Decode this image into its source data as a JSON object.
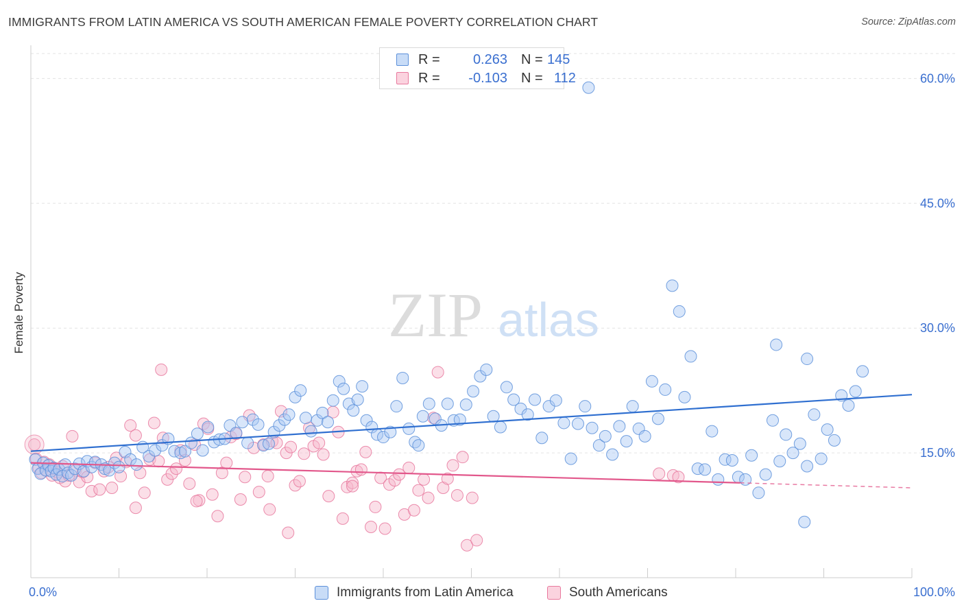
{
  "title": "IMMIGRANTS FROM LATIN AMERICA VS SOUTH AMERICAN FEMALE POVERTY CORRELATION CHART",
  "source": "Source: ZipAtlas.com",
  "watermark": {
    "zip": "ZIP",
    "atlas": "atlas"
  },
  "legend": {
    "rows": [
      {
        "r_label": "R =",
        "r_value": "0.263",
        "n_label": "N =",
        "n_value": "145",
        "color": "#a9c8f4"
      },
      {
        "r_label": "R =",
        "r_value": "-0.103",
        "n_label": "N =",
        "n_value": "112",
        "color": "#f6b8cb"
      }
    ]
  },
  "bottom_legend": [
    {
      "label": "Immigrants from Latin America",
      "color": "#a9c8f4"
    },
    {
      "label": "South Americans",
      "color": "#f6b8cb"
    }
  ],
  "chart_data": {
    "type": "scatter",
    "title": "IMMIGRANTS FROM LATIN AMERICA VS SOUTH AMERICAN FEMALE POVERTY CORRELATION CHART",
    "xlabel": "",
    "ylabel": "Female Poverty",
    "xlim": [
      0,
      100
    ],
    "ylim": [
      0,
      63
    ],
    "x_tick_labels": [
      "0.0%",
      "100.0%"
    ],
    "y_ticks": [
      15,
      30,
      45,
      60
    ],
    "y_tick_labels": [
      "15.0%",
      "30.0%",
      "45.0%",
      "60.0%"
    ],
    "grid": true,
    "legend_position": "top-center",
    "series": [
      {
        "name": "Immigrants from Latin America",
        "color": "#5b8fd9",
        "fill": "#a9c8f4",
        "trend": {
          "x": [
            0,
            100
          ],
          "y": [
            15.2,
            22.0
          ],
          "color": "#2f6fd0"
        },
        "points": [
          [
            0.5,
            14.2
          ],
          [
            0.8,
            13.1
          ],
          [
            1.1,
            12.5
          ],
          [
            1.4,
            13.8
          ],
          [
            1.7,
            12.9
          ],
          [
            2.0,
            13.5
          ],
          [
            2.3,
            12.8
          ],
          [
            2.6,
            13.2
          ],
          [
            2.9,
            12.4
          ],
          [
            3.2,
            13.0
          ],
          [
            3.6,
            12.2
          ],
          [
            3.9,
            13.6
          ],
          [
            4.2,
            12.6
          ],
          [
            4.6,
            12.3
          ],
          [
            5.0,
            13.1
          ],
          [
            5.5,
            13.7
          ],
          [
            6.0,
            12.8
          ],
          [
            6.4,
            14.0
          ],
          [
            6.9,
            13.3
          ],
          [
            7.3,
            13.9
          ],
          [
            8.0,
            13.6
          ],
          [
            8.4,
            13.1
          ],
          [
            8.9,
            12.9
          ],
          [
            9.5,
            13.8
          ],
          [
            10.0,
            13.3
          ],
          [
            10.7,
            15.1
          ],
          [
            11.3,
            14.2
          ],
          [
            12.0,
            13.6
          ],
          [
            12.7,
            15.7
          ],
          [
            13.4,
            14.6
          ],
          [
            14.1,
            15.3
          ],
          [
            14.9,
            15.9
          ],
          [
            15.6,
            16.7
          ],
          [
            16.3,
            15.2
          ],
          [
            17.0,
            15.0
          ],
          [
            17.5,
            15.2
          ],
          [
            18.2,
            16.2
          ],
          [
            18.9,
            17.3
          ],
          [
            19.5,
            15.3
          ],
          [
            20.1,
            18.1
          ],
          [
            20.8,
            16.3
          ],
          [
            21.4,
            16.6
          ],
          [
            22.0,
            16.7
          ],
          [
            22.6,
            18.3
          ],
          [
            23.3,
            17.4
          ],
          [
            24.0,
            18.7
          ],
          [
            24.6,
            16.2
          ],
          [
            25.2,
            19.0
          ],
          [
            25.8,
            18.4
          ],
          [
            26.4,
            15.9
          ],
          [
            27.0,
            16.1
          ],
          [
            27.6,
            17.5
          ],
          [
            28.2,
            18.3
          ],
          [
            28.8,
            19.0
          ],
          [
            29.3,
            19.6
          ],
          [
            30.0,
            21.7
          ],
          [
            30.6,
            22.5
          ],
          [
            31.2,
            19.2
          ],
          [
            31.8,
            17.6
          ],
          [
            32.5,
            18.9
          ],
          [
            33.1,
            19.8
          ],
          [
            33.7,
            18.7
          ],
          [
            34.3,
            21.3
          ],
          [
            35.0,
            23.6
          ],
          [
            35.5,
            22.7
          ],
          [
            36.1,
            20.9
          ],
          [
            36.6,
            20.1
          ],
          [
            37.1,
            21.4
          ],
          [
            37.6,
            23.0
          ],
          [
            38.1,
            18.9
          ],
          [
            38.7,
            18.1
          ],
          [
            39.3,
            17.2
          ],
          [
            40.0,
            16.9
          ],
          [
            40.8,
            17.5
          ],
          [
            41.5,
            20.6
          ],
          [
            42.2,
            24.0
          ],
          [
            42.9,
            17.9
          ],
          [
            43.6,
            16.3
          ],
          [
            44.0,
            15.9
          ],
          [
            44.5,
            19.4
          ],
          [
            45.2,
            20.9
          ],
          [
            45.9,
            19.1
          ],
          [
            46.6,
            18.3
          ],
          [
            47.3,
            20.9
          ],
          [
            48.0,
            18.9
          ],
          [
            48.7,
            19.0
          ],
          [
            49.4,
            20.8
          ],
          [
            50.2,
            22.4
          ],
          [
            51.0,
            24.2
          ],
          [
            51.7,
            25.0
          ],
          [
            52.5,
            19.4
          ],
          [
            53.3,
            18.1
          ],
          [
            54.0,
            22.9
          ],
          [
            54.8,
            21.4
          ],
          [
            55.6,
            20.3
          ],
          [
            56.4,
            19.6
          ],
          [
            57.2,
            21.4
          ],
          [
            58.0,
            16.8
          ],
          [
            58.8,
            20.6
          ],
          [
            59.6,
            21.3
          ],
          [
            60.5,
            18.6
          ],
          [
            61.3,
            14.3
          ],
          [
            62.1,
            18.5
          ],
          [
            62.9,
            20.6
          ],
          [
            63.7,
            18.0
          ],
          [
            64.5,
            15.9
          ],
          [
            65.2,
            17.0
          ],
          [
            66.0,
            14.8
          ],
          [
            66.8,
            18.2
          ],
          [
            67.6,
            16.4
          ],
          [
            68.3,
            20.6
          ],
          [
            69.0,
            17.9
          ],
          [
            69.7,
            17.0
          ],
          [
            70.5,
            23.6
          ],
          [
            71.2,
            19.1
          ],
          [
            72.0,
            22.6
          ],
          [
            72.8,
            35.1
          ],
          [
            73.6,
            32.0
          ],
          [
            74.2,
            21.7
          ],
          [
            74.9,
            26.6
          ],
          [
            75.7,
            13.1
          ],
          [
            76.5,
            13.0
          ],
          [
            77.3,
            17.6
          ],
          [
            78.0,
            11.8
          ],
          [
            78.8,
            14.2
          ],
          [
            79.6,
            14.1
          ],
          [
            80.3,
            12.1
          ],
          [
            81.1,
            11.8
          ],
          [
            81.8,
            14.7
          ],
          [
            82.6,
            10.2
          ],
          [
            83.4,
            12.4
          ],
          [
            84.2,
            18.9
          ],
          [
            85.0,
            14.0
          ],
          [
            85.7,
            17.2
          ],
          [
            86.5,
            15.0
          ],
          [
            87.3,
            16.1
          ],
          [
            88.1,
            13.4
          ],
          [
            88.9,
            19.6
          ],
          [
            89.7,
            14.3
          ],
          [
            90.4,
            17.8
          ],
          [
            91.2,
            16.5
          ],
          [
            92.0,
            21.9
          ],
          [
            92.8,
            20.7
          ],
          [
            93.6,
            22.4
          ],
          [
            94.4,
            24.8
          ],
          [
            63.3,
            58.9
          ],
          [
            84.6,
            28.0
          ],
          [
            88.1,
            26.3
          ],
          [
            87.8,
            6.7
          ]
        ]
      },
      {
        "name": "South Americans",
        "color": "#e8789d",
        "fill": "#f6b8cb",
        "trend": {
          "x": [
            0,
            80.5
          ],
          "y": [
            13.8,
            11.4
          ],
          "color": "#e2578b"
        },
        "trend_dashed": {
          "x": [
            80.5,
            100
          ],
          "y": [
            11.4,
            10.8
          ]
        },
        "points": [
          [
            0.4,
            16.0
          ],
          [
            0.6,
            14.3
          ],
          [
            0.9,
            13.2
          ],
          [
            1.2,
            12.6
          ],
          [
            1.5,
            13.9
          ],
          [
            1.8,
            12.9
          ],
          [
            2.1,
            13.6
          ],
          [
            2.4,
            12.3
          ],
          [
            2.7,
            13.1
          ],
          [
            3.0,
            12.7
          ],
          [
            3.3,
            12.0
          ],
          [
            3.6,
            13.4
          ],
          [
            3.9,
            11.6
          ],
          [
            4.3,
            12.3
          ],
          [
            4.7,
            17.0
          ],
          [
            5.1,
            12.9
          ],
          [
            5.5,
            11.5
          ],
          [
            5.9,
            12.7
          ],
          [
            6.4,
            12.1
          ],
          [
            6.9,
            10.4
          ],
          [
            7.3,
            13.8
          ],
          [
            7.8,
            10.6
          ],
          [
            8.3,
            12.8
          ],
          [
            8.8,
            13.3
          ],
          [
            9.2,
            10.8
          ],
          [
            9.7,
            14.4
          ],
          [
            10.2,
            12.2
          ],
          [
            10.8,
            13.9
          ],
          [
            11.3,
            18.3
          ],
          [
            11.9,
            17.1
          ],
          [
            12.4,
            12.6
          ],
          [
            12.9,
            10.2
          ],
          [
            13.5,
            14.2
          ],
          [
            14.0,
            18.6
          ],
          [
            14.5,
            14.0
          ],
          [
            15.0,
            16.8
          ],
          [
            15.5,
            11.8
          ],
          [
            16.0,
            12.5
          ],
          [
            16.5,
            13.1
          ],
          [
            17.0,
            15.3
          ],
          [
            17.5,
            14.1
          ],
          [
            18.0,
            11.3
          ],
          [
            18.6,
            16.0
          ],
          [
            19.1,
            9.3
          ],
          [
            19.6,
            18.5
          ],
          [
            20.1,
            17.9
          ],
          [
            20.6,
            10.0
          ],
          [
            21.2,
            7.4
          ],
          [
            21.7,
            12.6
          ],
          [
            22.2,
            13.8
          ],
          [
            22.7,
            16.9
          ],
          [
            23.3,
            17.3
          ],
          [
            23.8,
            9.4
          ],
          [
            24.3,
            12.1
          ],
          [
            24.8,
            19.5
          ],
          [
            25.3,
            15.6
          ],
          [
            25.9,
            10.3
          ],
          [
            26.4,
            16.0
          ],
          [
            26.9,
            12.2
          ],
          [
            27.4,
            16.4
          ],
          [
            27.9,
            16.2
          ],
          [
            28.4,
            20.0
          ],
          [
            29.0,
            15.0
          ],
          [
            29.5,
            15.7
          ],
          [
            30.0,
            11.1
          ],
          [
            30.5,
            11.6
          ],
          [
            31.0,
            14.9
          ],
          [
            31.6,
            18.0
          ],
          [
            32.1,
            15.8
          ],
          [
            32.7,
            16.2
          ],
          [
            33.2,
            14.8
          ],
          [
            33.8,
            9.8
          ],
          [
            34.3,
            19.9
          ],
          [
            34.9,
            17.5
          ],
          [
            35.4,
            7.1
          ],
          [
            35.9,
            10.9
          ],
          [
            36.5,
            11.4
          ],
          [
            37.0,
            12.8
          ],
          [
            37.5,
            13.0
          ],
          [
            38.0,
            15.1
          ],
          [
            38.6,
            6.1
          ],
          [
            39.1,
            8.5
          ],
          [
            39.7,
            12.0
          ],
          [
            40.2,
            5.9
          ],
          [
            40.7,
            11.2
          ],
          [
            41.3,
            11.7
          ],
          [
            41.8,
            12.4
          ],
          [
            42.4,
            7.6
          ],
          [
            42.9,
            13.2
          ],
          [
            43.5,
            8.1
          ],
          [
            44.0,
            10.5
          ],
          [
            44.6,
            11.8
          ],
          [
            45.1,
            9.6
          ],
          [
            45.7,
            19.2
          ],
          [
            46.2,
            24.7
          ],
          [
            46.8,
            10.8
          ],
          [
            47.3,
            11.9
          ],
          [
            47.9,
            13.5
          ],
          [
            48.4,
            9.9
          ],
          [
            49.0,
            14.5
          ],
          [
            49.5,
            3.9
          ],
          [
            50.1,
            9.6
          ],
          [
            14.8,
            25.0
          ],
          [
            29.2,
            5.4
          ],
          [
            50.6,
            4.5
          ],
          [
            18.8,
            9.2
          ],
          [
            27.1,
            8.2
          ],
          [
            11.9,
            8.4
          ],
          [
            36.5,
            11.0
          ],
          [
            71.3,
            12.5
          ],
          [
            72.9,
            12.3
          ],
          [
            73.5,
            12.1
          ]
        ]
      }
    ]
  }
}
